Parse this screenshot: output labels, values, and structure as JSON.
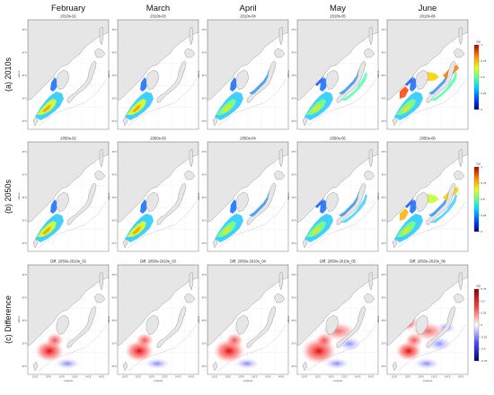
{
  "columns": [
    "February",
    "March",
    "April",
    "May",
    "June"
  ],
  "rows": [
    {
      "label": "(a) 2010s",
      "titles": [
        "2010s-02",
        "2010s-03",
        "2010s-04",
        "2010s-05",
        "2010s-06"
      ]
    },
    {
      "label": "(b) 2050s",
      "titles": [
        "2050s-02",
        "2050s-03",
        "2050s-04",
        "2050s-05",
        "2050s-06"
      ]
    },
    {
      "label": "(c) Difference",
      "titles": [
        "Diff. 2050s-2010s_02",
        "Diff. 2050s-2010s_03",
        "Diff. 2050s-2010s_04",
        "Diff. 2050s-2010s_05",
        "Diff. 2050s-2010s_06"
      ]
    }
  ],
  "axes": {
    "ylabel": "Latitude",
    "xlabel": "Longitude",
    "lat_ticks": [
      "45°N",
      "40°N",
      "35°N",
      "30°N",
      "25°N"
    ],
    "lon_ticks": [
      "120°E",
      "125°E",
      "130°E",
      "135°E",
      "140°E",
      "145°E"
    ]
  },
  "colorbars": [
    {
      "title": "SQI",
      "ticks": [
        "1",
        "0.75",
        "0.5",
        "0.25",
        "0"
      ],
      "palette": "jet"
    },
    {
      "title": "SQI",
      "ticks": [
        "1",
        "0.75",
        "0.5",
        "0.25",
        "0"
      ],
      "palette": "jet"
    },
    {
      "title": "SQI",
      "ticks": [
        "0.75",
        "0.5",
        "0.25",
        "0",
        "-0.25",
        "-0.5",
        "-0.75"
      ],
      "palette": "diverging-blue-white-red"
    }
  ],
  "colors": {
    "land": "#e6e6e6",
    "coast": "#7a7a7a",
    "background": "#ffffff"
  }
}
